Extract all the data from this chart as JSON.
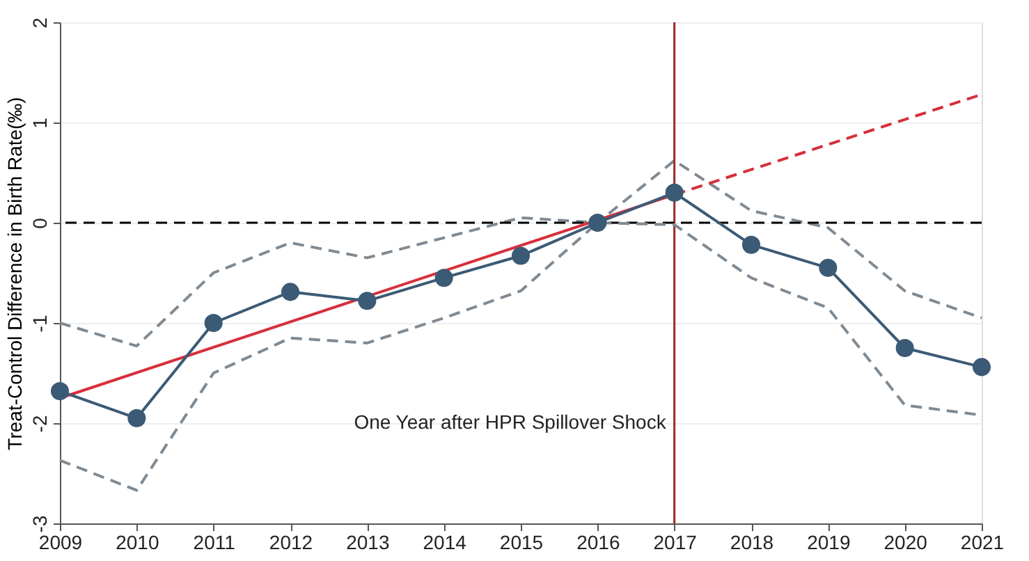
{
  "chart_data": {
    "type": "line",
    "ylabel": "Treat-Control Difference in Birth Rate(‰)",
    "xlim": [
      2009,
      2021
    ],
    "xticks": [
      2009,
      2010,
      2011,
      2012,
      2013,
      2014,
      2015,
      2016,
      2017,
      2018,
      2019,
      2020,
      2021
    ],
    "ylim": [
      -3,
      2
    ],
    "yticks": [
      -3,
      -2,
      -1,
      0,
      1,
      2
    ],
    "grid": "y",
    "series": [
      {
        "color": "#7f8a93",
        "line_style": "dashed",
        "marker": "none",
        "x": [
          2009,
          2010,
          2011,
          2012,
          2013,
          2014,
          2015,
          2016,
          2017,
          2018,
          2019,
          2020,
          2021
        ],
        "values": [
          -1.0,
          -1.23,
          -0.5,
          -0.2,
          -0.35,
          -0.15,
          0.05,
          0,
          0.62,
          0.12,
          -0.05,
          -0.68,
          -0.95
        ]
      },
      {
        "color": "#7f8a93",
        "line_style": "dashed",
        "marker": "none",
        "x": [
          2009,
          2010,
          2011,
          2012,
          2013,
          2014,
          2015,
          2016,
          2017,
          2018,
          2019,
          2020,
          2021
        ],
        "values": [
          -2.37,
          -2.67,
          -1.5,
          -1.15,
          -1.2,
          -0.95,
          -0.68,
          0,
          -0.02,
          -0.55,
          -0.85,
          -1.82,
          -1.92
        ]
      },
      {
        "color": "#d62f3a",
        "line_style": "solid",
        "marker": "none",
        "x": [
          2009,
          2017
        ],
        "values": [
          -1.75,
          0.28
        ]
      },
      {
        "color": "#d62f3a",
        "line_style": "dashed",
        "marker": "none",
        "x": [
          2017,
          2021
        ],
        "values": [
          0.28,
          1.28
        ]
      },
      {
        "color": "#3b5a75",
        "line_style": "solid",
        "marker": "circle",
        "x": [
          2009,
          2010,
          2011,
          2012,
          2013,
          2014,
          2015,
          2016,
          2017,
          2018,
          2019,
          2020,
          2021
        ],
        "values": [
          -1.68,
          -1.95,
          -1.0,
          -0.69,
          -0.78,
          -0.55,
          -0.33,
          0,
          0.3,
          -0.22,
          -0.45,
          -1.25,
          -1.44
        ]
      }
    ],
    "ref_lines": [
      {
        "axis": "y",
        "value": 0,
        "color": "#000000",
        "line_style": "dashed"
      },
      {
        "axis": "x",
        "value": 2017,
        "color": "#9b2a2a",
        "line_style": "solid"
      }
    ],
    "annotations": [
      {
        "text": "One Year after HPR Spillover Shock",
        "x": 2017,
        "y": -2
      }
    ]
  }
}
